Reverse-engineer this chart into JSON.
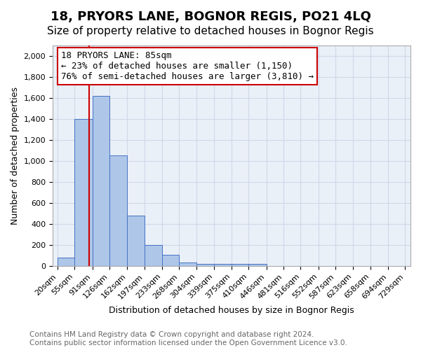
{
  "title": "18, PRYORS LANE, BOGNOR REGIS, PO21 4LQ",
  "subtitle": "Size of property relative to detached houses in Bognor Regis",
  "xlabel": "Distribution of detached houses by size in Bognor Regis",
  "ylabel": "Number of detached properties",
  "footnote1": "Contains HM Land Registry data © Crown copyright and database right 2024.",
  "footnote2": "Contains public sector information licensed under the Open Government Licence v3.0.",
  "annotation_title": "18 PRYORS LANE: 85sqm",
  "annotation_line1": "← 23% of detached houses are smaller (1,150)",
  "annotation_line2": "76% of semi-detached houses are larger (3,810) →",
  "property_size_sqm": 85,
  "bar_left_edges": [
    20,
    55,
    91,
    126,
    162,
    197,
    233,
    268,
    304,
    339,
    375,
    410,
    446,
    481,
    516,
    552,
    587,
    623,
    658,
    694
  ],
  "bar_widths": [
    35,
    36,
    35,
    36,
    35,
    36,
    35,
    36,
    35,
    36,
    35,
    36,
    35,
    35,
    36,
    35,
    36,
    35,
    36,
    35
  ],
  "bar_heights": [
    80,
    1400,
    1620,
    1050,
    480,
    200,
    105,
    35,
    22,
    20,
    20,
    20,
    0,
    0,
    0,
    0,
    0,
    0,
    0,
    0
  ],
  "tick_left_edges": [
    20,
    55,
    91,
    126,
    162,
    197,
    233,
    268,
    304,
    339,
    375,
    410,
    446,
    481,
    516,
    552,
    587,
    623,
    658,
    694,
    729
  ],
  "bar_color": "#aec6e8",
  "bar_edge_color": "#4472c4",
  "grid_color": "#d0d8e8",
  "background_color": "#eaf0f8",
  "red_line_color": "#cc0000",
  "annotation_box_color": "#ffffff",
  "annotation_box_edge_color": "#cc0000",
  "ylim": [
    0,
    2100
  ],
  "yticks": [
    0,
    200,
    400,
    600,
    800,
    1000,
    1200,
    1400,
    1600,
    1800,
    2000
  ],
  "xlim": [
    10,
    740
  ],
  "title_fontsize": 13,
  "subtitle_fontsize": 11,
  "axis_label_fontsize": 9,
  "tick_label_fontsize": 8,
  "annotation_fontsize": 9,
  "footnote_fontsize": 7.5
}
